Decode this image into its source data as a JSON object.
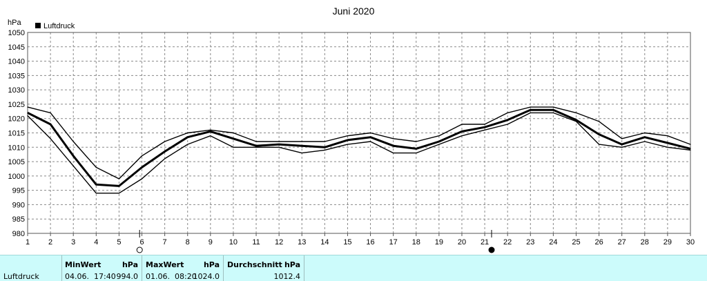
{
  "chart_data": {
    "type": "line",
    "title": "Juni 2020",
    "ylabel": "hPa",
    "legend": {
      "label": "Luftdruck",
      "placement": "top-left"
    },
    "ylim": [
      980,
      1050
    ],
    "yticks": [
      980,
      985,
      990,
      995,
      1000,
      1005,
      1010,
      1015,
      1020,
      1025,
      1030,
      1035,
      1040,
      1045,
      1050
    ],
    "x": [
      1,
      2,
      3,
      4,
      5,
      6,
      7,
      8,
      9,
      10,
      11,
      12,
      13,
      14,
      15,
      16,
      17,
      18,
      19,
      20,
      21,
      22,
      23,
      24,
      25,
      26,
      27,
      28,
      29,
      30
    ],
    "grid": true,
    "series": [
      {
        "kind": "max",
        "values": [
          1024,
          1022,
          1012,
          1003,
          999,
          1007,
          1012,
          1015,
          1016,
          1015,
          1012,
          1012,
          1012,
          1012,
          1014,
          1015,
          1013,
          1012,
          1014,
          1018,
          1018,
          1022,
          1024,
          1024,
          1022,
          1019,
          1013,
          1015,
          1014,
          1011
        ]
      },
      {
        "kind": "avg",
        "values": [
          1022,
          1018,
          1007,
          997,
          996.5,
          1003,
          1008.5,
          1013.5,
          1015.5,
          1013,
          1010.5,
          1011,
          1010.5,
          1010,
          1012.5,
          1013.5,
          1010.5,
          1009.5,
          1012,
          1015.5,
          1017,
          1019.5,
          1023,
          1023,
          1019.5,
          1014.5,
          1011,
          1013.5,
          1011.5,
          1009.5
        ]
      },
      {
        "kind": "min",
        "values": [
          1021,
          1013,
          1003.5,
          994,
          994,
          999,
          1006,
          1011,
          1014,
          1010,
          1010,
          1010,
          1008,
          1009,
          1011,
          1012,
          1008,
          1008,
          1011,
          1014,
          1016,
          1018,
          1022,
          1022,
          1019,
          1011,
          1010,
          1012,
          1010,
          1009
        ]
      }
    ],
    "markers": [
      {
        "x": 5.9,
        "symbol": "new-moon",
        "kind": "open"
      },
      {
        "x": 21.3,
        "symbol": "full-moon",
        "kind": "filled"
      }
    ]
  },
  "footer": {
    "row_label": "Luftdruck",
    "min": {
      "header": "MinWert",
      "unit": "hPa",
      "date": "04.06.",
      "time": "17:40",
      "value": "994.0"
    },
    "max": {
      "header": "MaxWert",
      "unit": "hPa",
      "date": "01.06.",
      "time": "08:20",
      "value": "1024.0"
    },
    "avg": {
      "header": "Durchschnitt",
      "unit": "hPa",
      "value": "1012.4"
    }
  }
}
